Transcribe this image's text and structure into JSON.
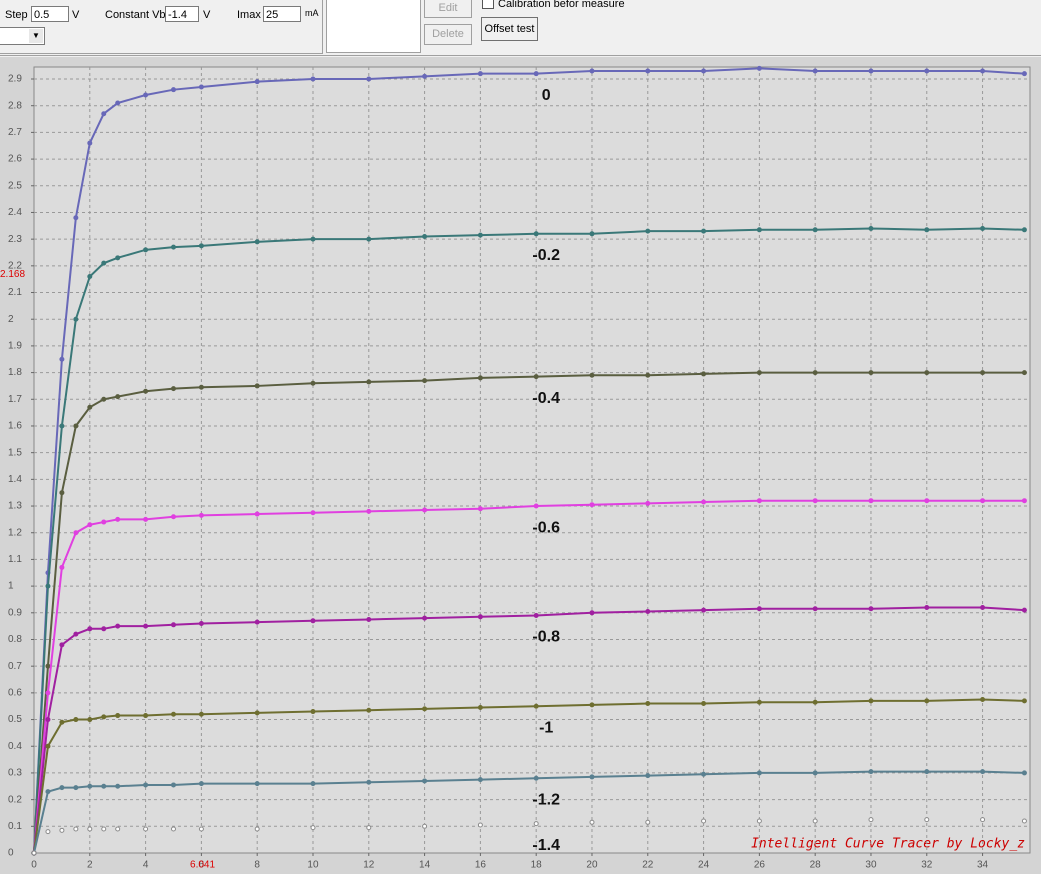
{
  "toolbar": {
    "step_label": "Step",
    "step_value": "0.5",
    "step_unit": "V",
    "vb_label": "Constant Vb",
    "vb_value": "-1.4",
    "vb_unit": "V",
    "imax_label": "Imax",
    "imax_value": "25",
    "imax_unit": "mA",
    "edit": "Edit",
    "delete": "Delete",
    "calibration": "Calibration befor measure",
    "offset": "Offset test"
  },
  "chart_data": {
    "type": "line",
    "watermark": "Intelligent Curve Tracer by Locky_z",
    "x": [
      0,
      0.5,
      1,
      1.5,
      2,
      2.5,
      3,
      4,
      5,
      6,
      8,
      10,
      12,
      14,
      16,
      18,
      20,
      22,
      24,
      26,
      28,
      30,
      32,
      34,
      35.5
    ],
    "series": [
      {
        "name": "0",
        "color": "#6868b8",
        "values": [
          0,
          1.05,
          1.85,
          2.38,
          2.66,
          2.77,
          2.81,
          2.84,
          2.86,
          2.87,
          2.89,
          2.9,
          2.9,
          2.91,
          2.92,
          2.92,
          2.93,
          2.93,
          2.93,
          2.94,
          2.93,
          2.93,
          2.93,
          2.93,
          2.92
        ]
      },
      {
        "name": "-0.2",
        "color": "#3a7878",
        "values": [
          0,
          1.0,
          1.6,
          2.0,
          2.16,
          2.21,
          2.23,
          2.26,
          2.27,
          2.275,
          2.29,
          2.3,
          2.3,
          2.31,
          2.315,
          2.32,
          2.32,
          2.33,
          2.33,
          2.335,
          2.335,
          2.34,
          2.335,
          2.34,
          2.335
        ]
      },
      {
        "name": "-0.4",
        "color": "#5a5e40",
        "values": [
          0,
          0.7,
          1.35,
          1.6,
          1.67,
          1.7,
          1.71,
          1.73,
          1.74,
          1.745,
          1.75,
          1.76,
          1.765,
          1.77,
          1.78,
          1.785,
          1.79,
          1.79,
          1.795,
          1.8,
          1.8,
          1.8,
          1.8,
          1.8,
          1.8
        ]
      },
      {
        "name": "-0.6",
        "color": "#e040e0",
        "values": [
          0,
          0.6,
          1.07,
          1.2,
          1.23,
          1.24,
          1.25,
          1.25,
          1.26,
          1.265,
          1.27,
          1.275,
          1.28,
          1.285,
          1.29,
          1.3,
          1.305,
          1.31,
          1.315,
          1.32,
          1.32,
          1.32,
          1.32,
          1.32,
          1.32
        ]
      },
      {
        "name": "-0.8",
        "color": "#a020a0",
        "values": [
          0,
          0.5,
          0.78,
          0.82,
          0.84,
          0.84,
          0.85,
          0.85,
          0.855,
          0.86,
          0.865,
          0.87,
          0.875,
          0.88,
          0.885,
          0.89,
          0.9,
          0.905,
          0.91,
          0.915,
          0.915,
          0.915,
          0.92,
          0.92,
          0.91
        ]
      },
      {
        "name": "-1",
        "color": "#6e6e30",
        "values": [
          0,
          0.4,
          0.49,
          0.5,
          0.5,
          0.51,
          0.515,
          0.515,
          0.52,
          0.52,
          0.525,
          0.53,
          0.535,
          0.54,
          0.545,
          0.55,
          0.555,
          0.56,
          0.56,
          0.565,
          0.565,
          0.57,
          0.57,
          0.575,
          0.57
        ]
      },
      {
        "name": "-1.2",
        "color": "#5a8090",
        "values": [
          0,
          0.23,
          0.245,
          0.245,
          0.25,
          0.25,
          0.25,
          0.255,
          0.255,
          0.26,
          0.26,
          0.26,
          0.265,
          0.27,
          0.275,
          0.28,
          0.285,
          0.29,
          0.295,
          0.3,
          0.3,
          0.305,
          0.305,
          0.305,
          0.3
        ]
      },
      {
        "name": "-1.4",
        "color": "#8a8a8a",
        "values": [
          0,
          0.08,
          0.085,
          0.09,
          0.09,
          0.09,
          0.09,
          0.09,
          0.09,
          0.09,
          0.09,
          0.095,
          0.095,
          0.1,
          0.105,
          0.11,
          0.115,
          0.115,
          0.12,
          0.12,
          0.12,
          0.125,
          0.125,
          0.125,
          0.12
        ]
      }
    ],
    "xlim": [
      0,
      35.7
    ],
    "ylim": [
      0,
      2.945
    ],
    "xticks": [
      0,
      2,
      4,
      6,
      8,
      10,
      12,
      14,
      16,
      18,
      20,
      22,
      24,
      26,
      28,
      30,
      32,
      34
    ],
    "yticks": [
      0,
      0.1,
      0.2,
      0.3,
      0.4,
      0.5,
      0.6,
      0.7,
      0.8,
      0.9,
      1,
      1.1,
      1.2,
      1.3,
      1.4,
      1.5,
      1.6,
      1.7,
      1.8,
      1.9,
      2,
      2.1,
      2.2,
      2.3,
      2.4,
      2.5,
      2.6,
      2.7,
      2.8,
      2.9
    ],
    "grid": true,
    "cursor": {
      "x": 6.041,
      "y": 2.168
    }
  }
}
